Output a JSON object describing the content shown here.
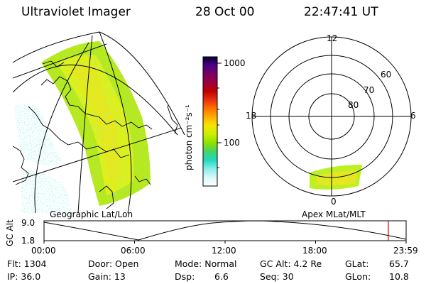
{
  "header": {
    "instrument": "Ultraviolet Imager",
    "date": "28 Oct 00",
    "time": "22:47:41 UT"
  },
  "geo_panel": {
    "label": "Geographic Lat/Lon"
  },
  "colorbar": {
    "unit_label": "photon cm⁻²s⁻¹",
    "ticks": [
      "1000",
      "100"
    ],
    "colors": [
      "#000033",
      "#4b0082",
      "#7a0060",
      "#9c0040",
      "#c00000",
      "#e83010",
      "#ff7000",
      "#ffb000",
      "#f6e600",
      "#c8f000",
      "#90e000",
      "#44d46a",
      "#22d8c0",
      "#88eee8",
      "#d8f8f8",
      "#ffffff"
    ]
  },
  "polar_panel": {
    "label": "Apex MLat/MLT",
    "mlt_labels": [
      "12",
      "18",
      "6",
      "0"
    ],
    "mlat_labels": [
      "60",
      "70",
      "80"
    ]
  },
  "altitude_plot": {
    "ylabel": "GC Alt",
    "y_ticks": [
      "9.0",
      "1.8"
    ],
    "x_ticks": [
      "00:00",
      "06:00",
      "12:00",
      "18:00",
      "23:59"
    ],
    "current_time_fraction": 0.9508,
    "marker_color": "#cc0000"
  },
  "status": {
    "flt": "Flt: 1304",
    "ip": "IP: 36.0",
    "door": "Door: Open",
    "gain": "Gain: 13",
    "mode": "Mode: Normal",
    "dsp_label": "Dsp:",
    "dsp_value": "6.6",
    "gc_alt": "GC Alt: 4.2 Re",
    "seq": "Seq: 30",
    "glat_label": "GLat:",
    "glat_value": "65.7",
    "glon_label": "GLon:",
    "glon_value": "10.8"
  }
}
